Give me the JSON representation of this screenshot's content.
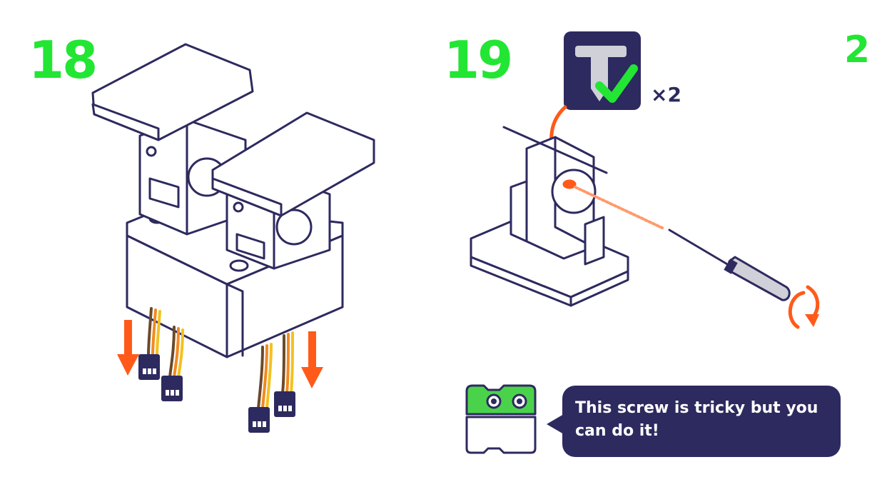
{
  "steps": [
    {
      "number": "18"
    },
    {
      "number": "19",
      "quantity": "×2"
    }
  ],
  "edge_mark": "2",
  "speech": {
    "text": "This screw is tricky but you can do it!"
  },
  "colors": {
    "step_number": "#22e633",
    "outline": "#2d2a5f",
    "arrow": "#ff5a1a",
    "speech_bg": "#2d2a5f",
    "robot_head": "#4ad34a",
    "wire_orange": "#f28a1f",
    "wire_yellow": "#f2c21f",
    "wire_brown": "#6b4a2a"
  },
  "icons": [
    "screw-icon",
    "check-icon",
    "screwdriver-icon",
    "rotate-arrow-icon",
    "robot-block-icon"
  ]
}
